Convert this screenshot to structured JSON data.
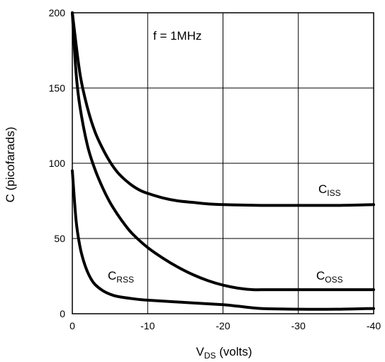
{
  "chart_data": {
    "type": "line",
    "xlabel": "V",
    "xlabel_sub": "DS",
    "xlabel_suffix": " (volts)",
    "ylabel": "C (picofarads)",
    "annotation": "f = 1MHz",
    "xlim": [
      0,
      -40
    ],
    "ylim": [
      0,
      200
    ],
    "x_ticks": [
      0,
      -10,
      -20,
      -30,
      -40
    ],
    "x_tick_labels": [
      "0",
      "-10",
      "-20",
      "-30",
      "-40"
    ],
    "y_ticks": [
      0,
      50,
      100,
      150,
      200
    ],
    "y_tick_labels": [
      "0",
      "50",
      "100",
      "150",
      "200"
    ],
    "grid": true,
    "series": [
      {
        "name": "C",
        "name_sub": "ISS",
        "color": "#000000",
        "points": [
          [
            0,
            200
          ],
          [
            -1,
            160
          ],
          [
            -2,
            137
          ],
          [
            -3,
            121
          ],
          [
            -4,
            110
          ],
          [
            -5,
            101
          ],
          [
            -6,
            94
          ],
          [
            -7,
            89
          ],
          [
            -8,
            85
          ],
          [
            -9,
            82
          ],
          [
            -10,
            80
          ],
          [
            -12,
            77
          ],
          [
            -14,
            75
          ],
          [
            -16,
            74
          ],
          [
            -18,
            73
          ],
          [
            -20,
            72.5
          ],
          [
            -25,
            72
          ],
          [
            -30,
            72
          ],
          [
            -35,
            72
          ],
          [
            -40,
            72.5
          ]
        ]
      },
      {
        "name": "C",
        "name_sub": "OSS",
        "color": "#000000",
        "points": [
          [
            0,
            200
          ],
          [
            -0.5,
            160
          ],
          [
            -1,
            138
          ],
          [
            -2,
            112
          ],
          [
            -3,
            96
          ],
          [
            -4,
            84
          ],
          [
            -5,
            74
          ],
          [
            -6,
            66
          ],
          [
            -7,
            59
          ],
          [
            -8,
            53
          ],
          [
            -10,
            44
          ],
          [
            -12,
            37
          ],
          [
            -14,
            31
          ],
          [
            -16,
            26
          ],
          [
            -18,
            22
          ],
          [
            -20,
            19
          ],
          [
            -22,
            17
          ],
          [
            -24,
            16
          ],
          [
            -26,
            16
          ],
          [
            -30,
            16
          ],
          [
            -35,
            16
          ],
          [
            -40,
            16
          ]
        ]
      },
      {
        "name": "C",
        "name_sub": "RSS",
        "color": "#000000",
        "points": [
          [
            0,
            95
          ],
          [
            -0.5,
            62
          ],
          [
            -1,
            45
          ],
          [
            -1.5,
            35
          ],
          [
            -2,
            28
          ],
          [
            -2.5,
            23
          ],
          [
            -3,
            19.5
          ],
          [
            -4,
            15.5
          ],
          [
            -5,
            13
          ],
          [
            -6,
            11.5
          ],
          [
            -8,
            10
          ],
          [
            -10,
            9
          ],
          [
            -15,
            7.5
          ],
          [
            -20,
            6
          ],
          [
            -22,
            5
          ],
          [
            -25,
            3.5
          ],
          [
            -30,
            3
          ],
          [
            -35,
            3
          ],
          [
            -40,
            3.5
          ]
        ]
      }
    ]
  }
}
